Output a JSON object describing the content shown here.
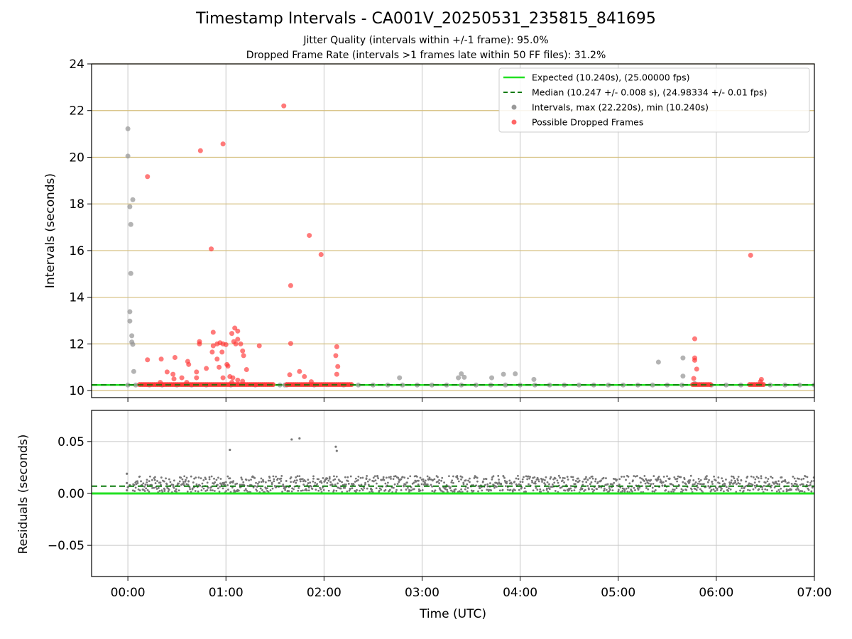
{
  "chart_data": [
    {
      "type": "scatter",
      "title": "Timestamp Intervals - CA001V_20250531_235815_841695",
      "subtitles": [
        "Jitter Quality (intervals within +/-1 frame): 95.0%",
        "Dropped Frame Rate (intervals >1 frames late within 50 FF files): 31.2%"
      ],
      "xlabel": "Time (UTC)",
      "ylabel": "Intervals (seconds)",
      "xlim_hours": [
        -0.37,
        7.0
      ],
      "ylim": [
        9.7,
        24
      ],
      "yticks": [
        "10",
        "12",
        "14",
        "16",
        "18",
        "20",
        "22",
        "24"
      ],
      "grid": true,
      "legend_position": "top-right",
      "legend": [
        "Expected (10.240s), (25.00000 fps)",
        "Median (10.247 +/- 0.008 s), (24.98334 +/- 0.01 fps)",
        "Intervals, max (22.220s), min (10.240s)",
        "Possible Dropped Frames"
      ],
      "colors": {
        "expected": "#22e022",
        "median": "#0a7a0a",
        "interval": "#999999",
        "dropped": "#ff3333",
        "hgrid": "#d4be7c",
        "vgrid": "#c8c8c8"
      },
      "series": [
        {
          "name": "Expected (10.240s), (25.00000 fps)",
          "kind": "hline",
          "y": 10.24
        },
        {
          "name": "Median (10.247 +/- 0.008 s), (24.98334 +/- 0.01 fps)",
          "kind": "hline-dashed",
          "y": 10.247
        },
        {
          "name": "Intervals, max (22.220s), min (10.240s)",
          "kind": "points",
          "points": [
            [
              0.0,
              21.22
            ],
            [
              0.0,
              20.05
            ],
            [
              0.02,
              17.88
            ],
            [
              0.05,
              18.18
            ],
            [
              0.03,
              17.12
            ],
            [
              0.03,
              15.02
            ],
            [
              0.02,
              13.38
            ],
            [
              0.02,
              12.98
            ],
            [
              0.04,
              12.35
            ],
            [
              0.04,
              12.08
            ],
            [
              0.05,
              11.98
            ],
            [
              0.06,
              10.82
            ],
            [
              0.0,
              10.24
            ],
            [
              0.08,
              10.24
            ],
            [
              2.77,
              10.55
            ],
            [
              3.37,
              10.55
            ],
            [
              3.4,
              10.72
            ],
            [
              3.43,
              10.57
            ],
            [
              3.71,
              10.55
            ],
            [
              3.83,
              10.7
            ],
            [
              3.95,
              10.72
            ],
            [
              4.14,
              10.48
            ],
            [
              5.41,
              11.22
            ],
            [
              5.66,
              11.4
            ],
            [
              5.66,
              10.62
            ],
            [
              5.78,
              10.3
            ],
            [
              0.22,
              10.24
            ],
            [
              0.35,
              10.24
            ],
            [
              0.5,
              10.24
            ],
            [
              0.65,
              10.24
            ],
            [
              0.8,
              10.24
            ],
            [
              1.05,
              10.24
            ],
            [
              1.3,
              10.24
            ],
            [
              1.55,
              10.24
            ],
            [
              1.6,
              10.24
            ],
            [
              1.62,
              10.24
            ],
            [
              1.9,
              10.24
            ],
            [
              2.2,
              10.24
            ],
            [
              2.35,
              10.24
            ],
            [
              2.5,
              10.24
            ],
            [
              2.65,
              10.24
            ],
            [
              2.8,
              10.24
            ],
            [
              2.95,
              10.24
            ],
            [
              3.1,
              10.24
            ],
            [
              3.25,
              10.24
            ],
            [
              3.4,
              10.24
            ],
            [
              3.55,
              10.24
            ],
            [
              3.7,
              10.24
            ],
            [
              3.85,
              10.24
            ],
            [
              4.0,
              10.24
            ],
            [
              4.15,
              10.24
            ],
            [
              4.3,
              10.24
            ],
            [
              4.45,
              10.24
            ],
            [
              4.6,
              10.24
            ],
            [
              4.75,
              10.24
            ],
            [
              4.9,
              10.24
            ],
            [
              5.05,
              10.24
            ],
            [
              5.2,
              10.24
            ],
            [
              5.35,
              10.24
            ],
            [
              5.5,
              10.24
            ],
            [
              5.65,
              10.24
            ],
            [
              5.95,
              10.24
            ],
            [
              6.1,
              10.24
            ],
            [
              6.25,
              10.24
            ],
            [
              6.55,
              10.24
            ],
            [
              6.7,
              10.24
            ],
            [
              6.85,
              10.24
            ],
            [
              7.0,
              10.24
            ]
          ]
        },
        {
          "name": "Possible Dropped Frames",
          "kind": "points",
          "bands": [
            {
              "x_start": 0.12,
              "x_end": 1.48,
              "y": 10.26
            },
            {
              "x_start": 1.62,
              "x_end": 2.28,
              "y": 10.26
            },
            {
              "x_start": 5.76,
              "x_end": 5.94,
              "y": 10.26
            },
            {
              "x_start": 6.34,
              "x_end": 6.48,
              "y": 10.26
            }
          ],
          "points": [
            [
              1.59,
              22.2
            ],
            [
              0.74,
              20.28
            ],
            [
              0.97,
              20.57
            ],
            [
              0.2,
              19.17
            ],
            [
              0.85,
              16.07
            ],
            [
              1.85,
              16.65
            ],
            [
              1.97,
              15.83
            ],
            [
              1.66,
              14.5
            ],
            [
              6.35,
              15.8
            ],
            [
              5.78,
              12.22
            ],
            [
              1.09,
              12.68
            ],
            [
              1.12,
              12.55
            ],
            [
              0.87,
              12.5
            ],
            [
              1.06,
              12.45
            ],
            [
              1.12,
              12.2
            ],
            [
              1.08,
              12.1
            ],
            [
              1.1,
              12.0
            ],
            [
              1.15,
              12.0
            ],
            [
              0.73,
              12.1
            ],
            [
              0.73,
              12.0
            ],
            [
              0.91,
              12.0
            ],
            [
              0.94,
              12.05
            ],
            [
              0.97,
              12.0
            ],
            [
              0.87,
              11.92
            ],
            [
              1.0,
              11.97
            ],
            [
              1.34,
              11.92
            ],
            [
              1.66,
              12.02
            ],
            [
              2.13,
              11.88
            ],
            [
              0.86,
              11.65
            ],
            [
              0.96,
              11.65
            ],
            [
              1.17,
              11.7
            ],
            [
              1.18,
              11.5
            ],
            [
              2.12,
              11.5
            ],
            [
              0.91,
              11.35
            ],
            [
              0.2,
              11.32
            ],
            [
              0.34,
              11.35
            ],
            [
              0.48,
              11.42
            ],
            [
              0.61,
              11.25
            ],
            [
              0.62,
              11.12
            ],
            [
              5.78,
              11.4
            ],
            [
              5.78,
              11.3
            ],
            [
              1.02,
              11.05
            ],
            [
              1.01,
              11.12
            ],
            [
              0.93,
              11.0
            ],
            [
              0.8,
              10.95
            ],
            [
              2.14,
              11.03
            ],
            [
              5.8,
              10.92
            ],
            [
              0.4,
              10.8
            ],
            [
              0.7,
              10.8
            ],
            [
              1.21,
              10.9
            ],
            [
              1.75,
              10.82
            ],
            [
              0.46,
              10.7
            ],
            [
              1.65,
              10.68
            ],
            [
              2.13,
              10.7
            ],
            [
              0.47,
              10.5
            ],
            [
              0.55,
              10.55
            ],
            [
              0.7,
              10.55
            ],
            [
              0.97,
              10.55
            ],
            [
              1.04,
              10.6
            ],
            [
              1.07,
              10.55
            ],
            [
              1.8,
              10.6
            ],
            [
              5.77,
              10.52
            ],
            [
              1.12,
              10.45
            ],
            [
              1.17,
              10.4
            ],
            [
              0.33,
              10.35
            ],
            [
              1.06,
              10.35
            ],
            [
              6.46,
              10.48
            ],
            [
              6.45,
              10.38
            ],
            [
              1.87,
              10.38
            ],
            [
              0.6,
              10.35
            ]
          ]
        }
      ]
    },
    {
      "type": "scatter",
      "xlabel": "Time (UTC)",
      "ylabel": "Residuals (seconds)",
      "xlim_hours": [
        -0.37,
        7.0
      ],
      "ylim": [
        -0.08,
        0.08
      ],
      "yticks": [
        "−0.05",
        "0.00",
        "0.05"
      ],
      "xticks": [
        "00:00",
        "01:00",
        "02:00",
        "03:00",
        "04:00",
        "05:00",
        "06:00",
        "07:00"
      ],
      "grid": true,
      "series": [
        {
          "name": "Expected (10.240s), (25.00000 fps)",
          "kind": "hline",
          "y": 0.0
        },
        {
          "name": "Median (10.247 +/- 0.008 s), (24.98334 +/- 0.01 fps)",
          "kind": "hline-dashed",
          "y": 0.007
        },
        {
          "name": "Residuals",
          "kind": "band",
          "x_start": 0.05,
          "x_end": 7.0,
          "y_min": 0.001,
          "y_max": 0.017
        },
        {
          "name": "Residual outliers",
          "kind": "points",
          "points": [
            [
              -0.01,
              0.019
            ],
            [
              -0.01,
              0.01
            ],
            [
              -0.01,
              0.003
            ],
            [
              0.02,
              0.008
            ],
            [
              0.0,
              0.006
            ],
            [
              1.04,
              0.042
            ],
            [
              1.67,
              0.052
            ],
            [
              1.75,
              0.053
            ],
            [
              2.12,
              0.045
            ],
            [
              2.13,
              0.041
            ]
          ]
        }
      ]
    }
  ]
}
